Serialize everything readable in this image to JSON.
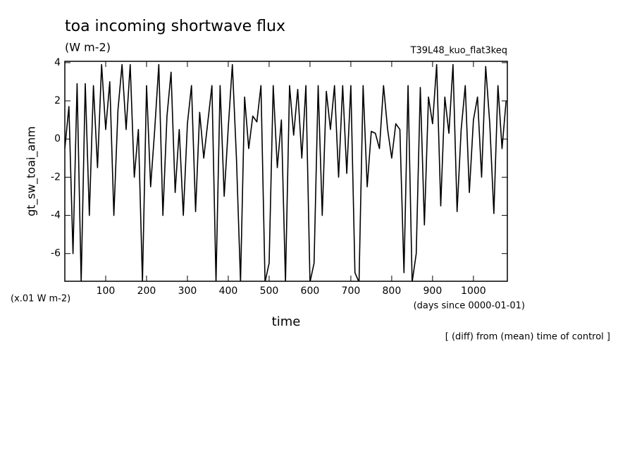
{
  "chart_data": {
    "type": "line",
    "title": "toa incoming shortwave flux",
    "subtitle": "(W m-2)",
    "experiment": "T39L48_kuo_flat3keq",
    "y_label": "gt_sw_toai_anm",
    "y_unit": "(x.01 W m-2)",
    "x_label": "time",
    "x_unit": "(days since 0000-01-01)",
    "note": "[ (diff) from (mean) time of control ]",
    "xlim": [
      0,
      1083
    ],
    "ylim": [
      -7.45,
      4.07
    ],
    "xticks": [
      100,
      200,
      300,
      400,
      500,
      600,
      700,
      800,
      900,
      1000
    ],
    "yticks": [
      -6,
      -4,
      -2,
      0,
      2,
      4
    ],
    "x": [
      0,
      10,
      20,
      30,
      40,
      50,
      60,
      70,
      80,
      90,
      100,
      110,
      120,
      130,
      140,
      150,
      160,
      170,
      180,
      190,
      200,
      210,
      220,
      230,
      240,
      250,
      260,
      270,
      280,
      290,
      300,
      310,
      320,
      330,
      340,
      350,
      360,
      370,
      380,
      390,
      400,
      410,
      420,
      430,
      440,
      450,
      460,
      470,
      480,
      490,
      500,
      510,
      520,
      530,
      540,
      550,
      560,
      570,
      580,
      590,
      600,
      610,
      620,
      630,
      640,
      650,
      660,
      670,
      680,
      690,
      700,
      710,
      720,
      730,
      740,
      750,
      760,
      770,
      780,
      790,
      800,
      810,
      820,
      830,
      840,
      850,
      860,
      870,
      880,
      890,
      900,
      910,
      920,
      930,
      940,
      950,
      960,
      970,
      980,
      990,
      1000,
      1010,
      1020,
      1030,
      1040,
      1050,
      1060,
      1070,
      1080
    ],
    "series": [
      {
        "name": "gt_sw_toai_anm",
        "color": "#000000",
        "values": [
          -0.5,
          1.7,
          -6,
          2.9,
          -7.5,
          2.9,
          -4,
          2.8,
          -1.5,
          3.9,
          0.5,
          3,
          -4,
          1.5,
          3.9,
          0.5,
          3.9,
          -2,
          0.5,
          -7.5,
          2.8,
          -2.5,
          0.5,
          3.9,
          -4,
          1.2,
          3.5,
          -2.8,
          0.5,
          -4,
          0.8,
          2.8,
          -3.8,
          1.4,
          -1,
          0.9,
          2.8,
          -7.5,
          2.8,
          -3,
          0.6,
          3.9,
          -1,
          -7.5,
          2.2,
          -0.5,
          1.2,
          0.9,
          2.8,
          -7.5,
          -6.5,
          2.8,
          -1.5,
          1,
          -7.5,
          2.8,
          0.2,
          2.6,
          -1,
          2.8,
          -7.5,
          -6.5,
          2.8,
          -4,
          2.5,
          0.5,
          2.8,
          -2,
          2.8,
          -1.8,
          2.8,
          -7,
          -7.5,
          2.8,
          -2.5,
          0.4,
          0.3,
          -0.5,
          2.8,
          0.5,
          -1,
          0.8,
          0.5,
          -7,
          2.8,
          -7.5,
          -6,
          2.7,
          -4.5,
          2.2,
          0.8,
          3.9,
          -3.5,
          2.2,
          0.3,
          3.9,
          -3.8,
          0.5,
          2.8,
          -2.8,
          1,
          2.2,
          -2,
          3.8,
          0.8,
          -3.9,
          2.8,
          -0.5,
          2
        ]
      }
    ]
  }
}
